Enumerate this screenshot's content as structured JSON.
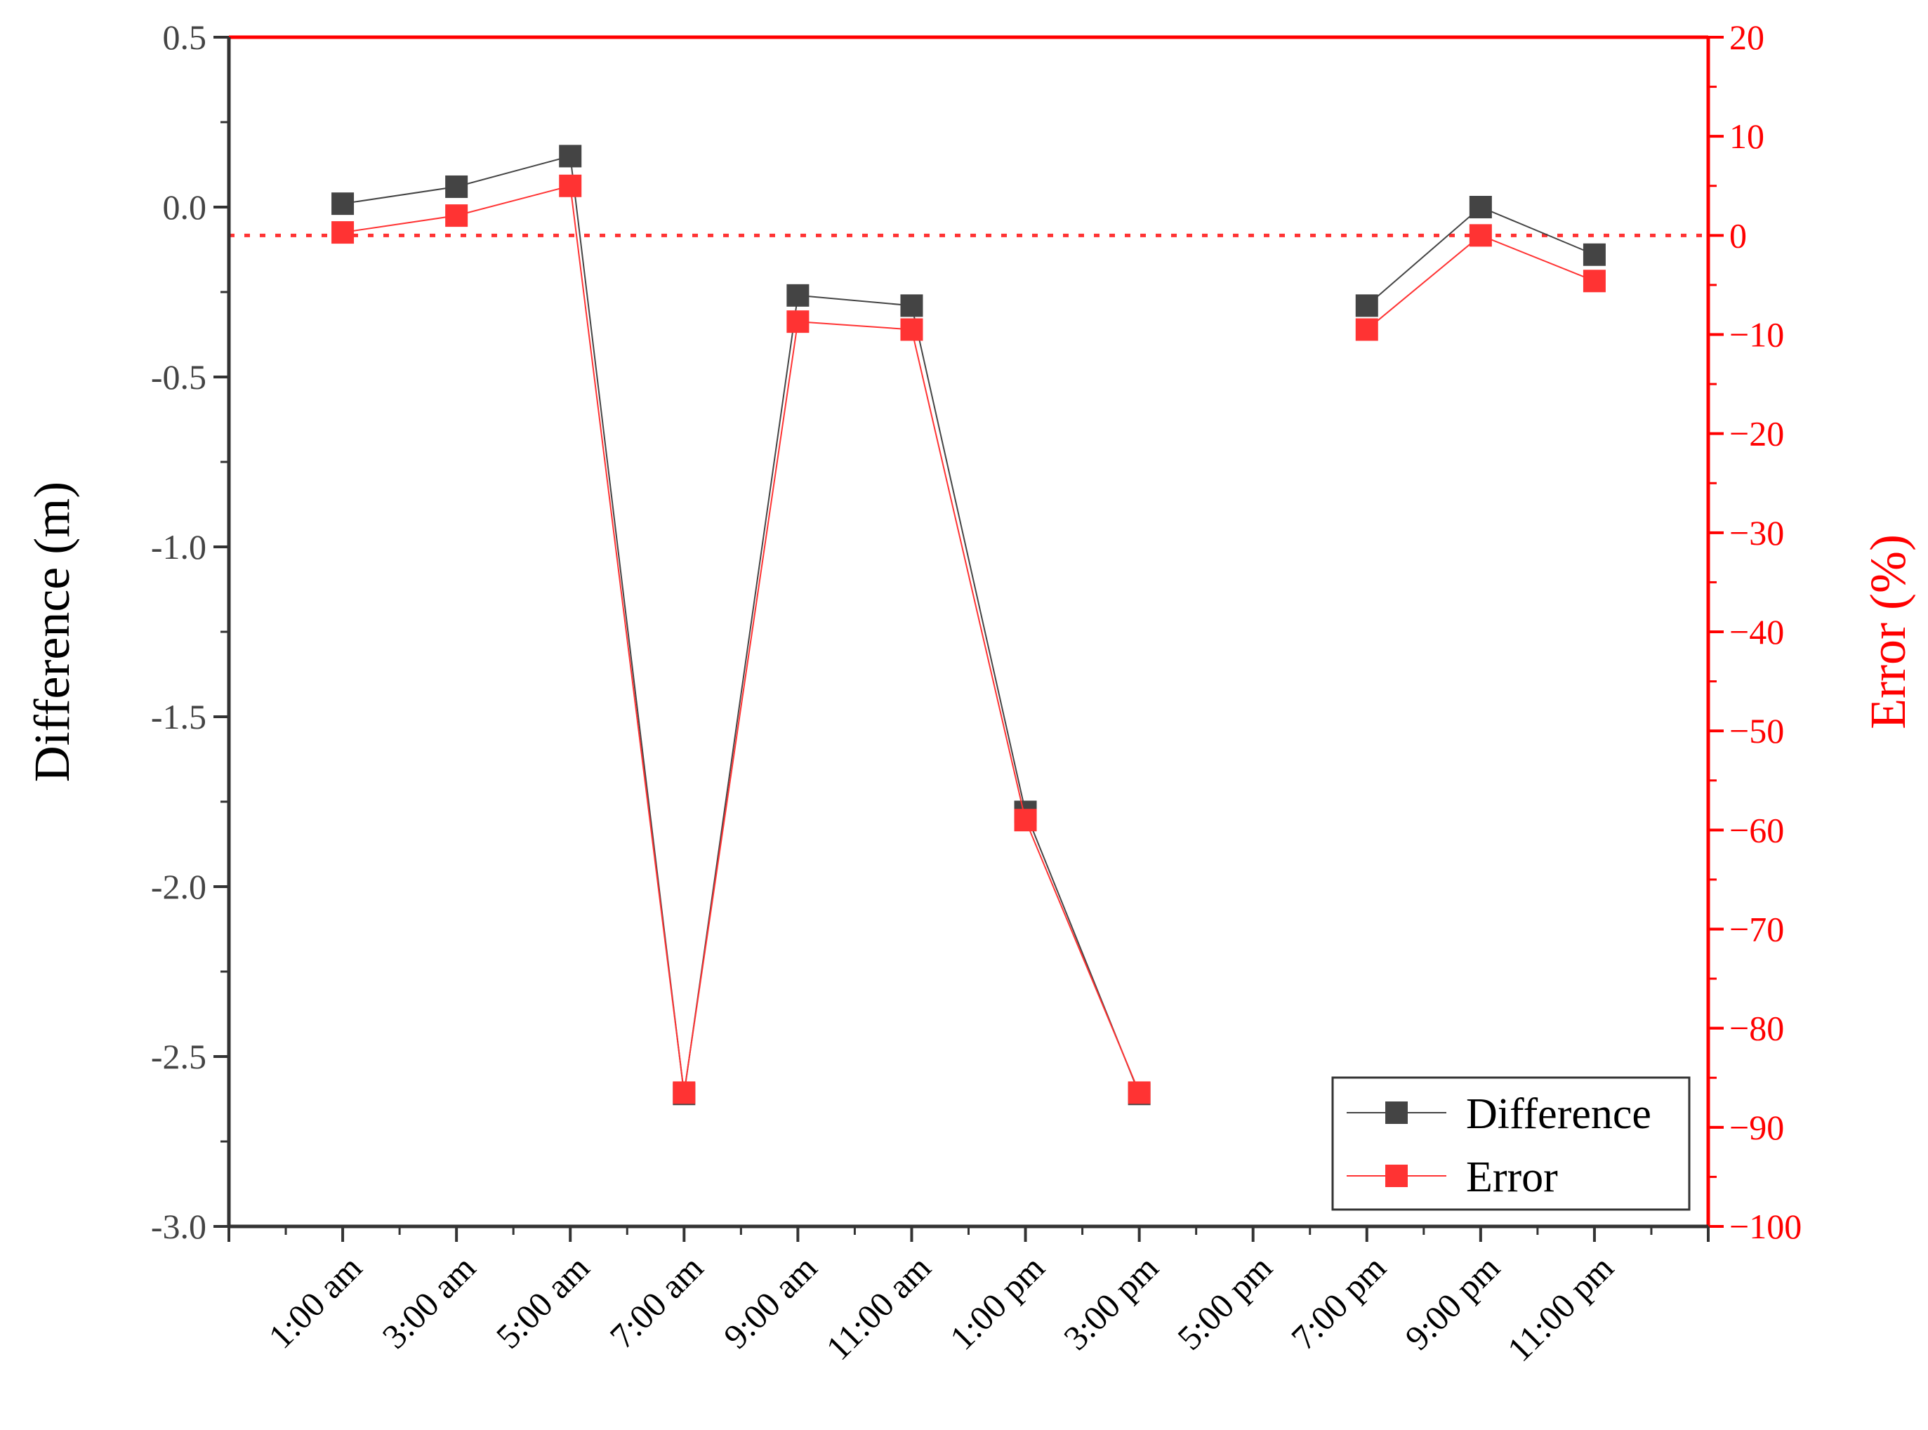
{
  "chart_data": {
    "type": "line",
    "categories": [
      "1:00 am",
      "3:00 am",
      "5:00 am",
      "7:00 am",
      "9:00 am",
      "11:00 am",
      "1:00 pm",
      "3:00 pm",
      "5:00 pm",
      "7:00 pm",
      "9:00 pm",
      "11:00 pm"
    ],
    "series": [
      {
        "name": "Difference",
        "axis": "left",
        "color": "#444444",
        "values": [
          0.01,
          0.06,
          0.15,
          -2.61,
          -0.26,
          -0.29,
          -1.78,
          -2.61,
          null,
          -0.29,
          0.0,
          -0.14
        ]
      },
      {
        "name": "Error",
        "axis": "right",
        "color": "#ff3333",
        "values": [
          0.3,
          2.0,
          5.0,
          -86.5,
          -8.7,
          -9.5,
          -59.0,
          -86.5,
          null,
          -9.5,
          0.0,
          -4.6
        ]
      }
    ],
    "ylabel_left": "Difference (m)",
    "ylabel_right": "Error (%)",
    "ylim_left": [
      -3.0,
      0.5
    ],
    "ylim_right": [
      -100,
      20
    ],
    "yticks_left": [
      "0.5",
      "0.0",
      "-0.5",
      "-1.0",
      "-1.5",
      "-2.0",
      "-2.5",
      "-3.0"
    ],
    "yticks_right": [
      "20",
      "10",
      "0",
      "-10",
      "-20",
      "-30",
      "-40",
      "-50",
      "-60",
      "-70",
      "-80",
      "-90",
      "-100"
    ],
    "reference_line": {
      "axis": "right",
      "value": 0,
      "style": "dotted",
      "color": "#ff3333"
    },
    "legend": [
      "Difference",
      "Error"
    ],
    "legend_position": "bottom-right",
    "grid": false
  }
}
